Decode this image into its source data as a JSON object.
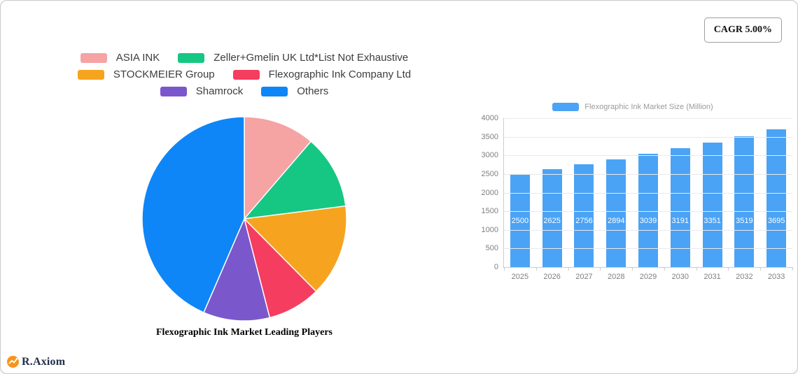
{
  "card": {
    "cagr_badge": "CAGR 5.00%"
  },
  "logo": {
    "text": "R.Axiom",
    "icon_color": "#F7941E"
  },
  "chart_data": [
    {
      "type": "pie",
      "title": "Flexographic Ink Market Leading Players",
      "legend_position": "top",
      "labels": [
        "ASIA INK",
        "Zeller+Gmelin UK Ltd*List Not Exhaustive",
        "STOCKMEIER Group",
        "Flexographic Ink Company Ltd",
        "Shamrock",
        "Others"
      ],
      "values": [
        11.3,
        11.7,
        14.6,
        8.4,
        10.5,
        43.5
      ],
      "unit": "percent_share_estimated",
      "colors": [
        "#F5A3A3",
        "#16C784",
        "#F6A41F",
        "#F43D5F",
        "#7A58CC",
        "#0E86F7"
      ],
      "start_angle": "top",
      "direction": "clockwise"
    },
    {
      "type": "bar",
      "title": "Flexographic Ink Market Size (Million)",
      "legend_position": "top",
      "categories": [
        "2025",
        "2026",
        "2027",
        "2028",
        "2029",
        "2030",
        "2031",
        "2032",
        "2033"
      ],
      "values": [
        2500,
        2625,
        2756,
        2894,
        3039,
        3191,
        3351,
        3519,
        3695
      ],
      "ylim": [
        0,
        4000
      ],
      "ytick_step": 500,
      "grid": true,
      "bar_color": "#4BA3F5",
      "value_label_color": "#ffffff"
    }
  ]
}
